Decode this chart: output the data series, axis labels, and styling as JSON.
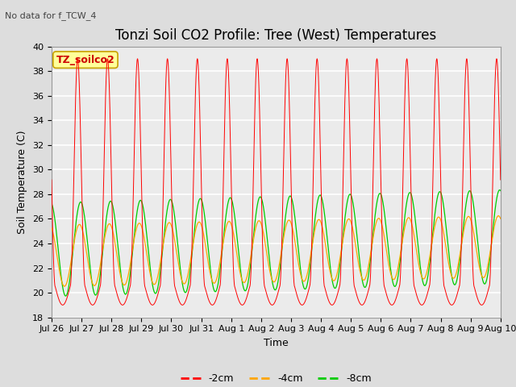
{
  "title": "Tonzi Soil CO2 Profile: Tree (West) Temperatures",
  "subtitle": "No data for f_TCW_4",
  "xlabel": "Time",
  "ylabel": "Soil Temperature (C)",
  "ylim": [
    18,
    40
  ],
  "yticks": [
    18,
    20,
    22,
    24,
    26,
    28,
    30,
    32,
    34,
    36,
    38,
    40
  ],
  "xtick_labels": [
    "Jul 26",
    "Jul 27",
    "Jul 28",
    "Jul 29",
    "Jul 30",
    "Jul 31",
    "Aug 1",
    "Aug 2",
    "Aug 3",
    "Aug 4",
    "Aug 5",
    "Aug 6",
    "Aug 7",
    "Aug 8",
    "Aug 9",
    "Aug 10"
  ],
  "legend_labels": [
    "-2cm",
    "-4cm",
    "-8cm"
  ],
  "legend_colors": [
    "#ff0000",
    "#ffa500",
    "#00cc00"
  ],
  "line_colors": [
    "#ff0000",
    "#ffa500",
    "#00cc00"
  ],
  "bg_color": "#dddddd",
  "inner_bg_color": "#ebebeb",
  "grid_color": "#ffffff",
  "title_fontsize": 12,
  "axis_fontsize": 9,
  "tick_fontsize": 8,
  "legend_box_color": "#ffff99",
  "legend_box_edge": "#c8a000",
  "legend_text": "TZ_soilco2"
}
